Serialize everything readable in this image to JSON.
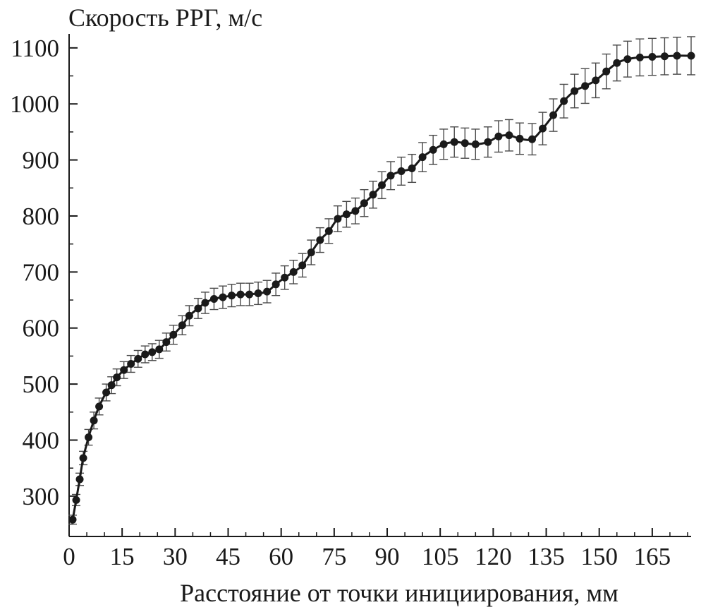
{
  "chart_data": {
    "type": "line",
    "title": "",
    "ylabel": "Скорость РРГ, м/с",
    "xlabel": "Расстояние от точки инициирования, мм",
    "xlim": [
      0,
      176
    ],
    "ylim": [
      228,
      1125
    ],
    "xticks": [
      0,
      15,
      30,
      45,
      60,
      75,
      90,
      105,
      120,
      135,
      150,
      165
    ],
    "yticks": [
      300,
      400,
      500,
      600,
      700,
      800,
      900,
      1000,
      1100
    ],
    "grid": false,
    "legend": "none",
    "colors": {
      "line": "#1a1a1a",
      "marker": "#1a1a1a",
      "errorbar": "#4a4a4a"
    },
    "series": [
      {
        "x": [
          1,
          2,
          3,
          4,
          5.5,
          7,
          8.5,
          10.5,
          12,
          13.5,
          15.5,
          17.5,
          19.5,
          21.5,
          23.5,
          25.5,
          27.5,
          29.5,
          32,
          34,
          36.5,
          38.5,
          41,
          43.5,
          46,
          48.5,
          51,
          53.5,
          56,
          58.5,
          61,
          63.5,
          66,
          68.5,
          71,
          73.5,
          76,
          78.5,
          81,
          83.5,
          86,
          88.5,
          91,
          94,
          97,
          100,
          103,
          106,
          109,
          112,
          115,
          118.5,
          121.5,
          124.5,
          127.5,
          131,
          134,
          137,
          140,
          143,
          146,
          149,
          152,
          155,
          158,
          161.5,
          165,
          168.5,
          172,
          176
        ],
        "y": [
          258,
          293,
          330,
          368,
          405,
          435,
          460,
          485,
          498,
          512,
          525,
          536,
          545,
          553,
          557,
          562,
          575,
          588,
          605,
          622,
          635,
          645,
          652,
          655,
          658,
          660,
          660,
          662,
          665,
          678,
          690,
          700,
          712,
          735,
          757,
          773,
          795,
          803,
          809,
          823,
          838,
          855,
          872,
          880,
          885,
          905,
          918,
          928,
          932,
          930,
          928,
          932,
          942,
          944,
          938,
          937,
          956,
          980,
          1005,
          1023,
          1032,
          1042,
          1058,
          1073,
          1080,
          1083,
          1084,
          1085,
          1086,
          1086
        ],
        "error": [
          8,
          10,
          11,
          12,
          14,
          15,
          15,
          15,
          15,
          15,
          15,
          15,
          15,
          15,
          15,
          16,
          16,
          17,
          17,
          18,
          18,
          19,
          19,
          20,
          20,
          20,
          20,
          20,
          20,
          20,
          21,
          21,
          21,
          22,
          22,
          22,
          23,
          23,
          23,
          24,
          24,
          24,
          25,
          25,
          25,
          26,
          26,
          27,
          27,
          27,
          27,
          27,
          28,
          28,
          28,
          28,
          29,
          29,
          30,
          30,
          31,
          31,
          31,
          32,
          32,
          33,
          33,
          33,
          33,
          34
        ]
      }
    ]
  }
}
